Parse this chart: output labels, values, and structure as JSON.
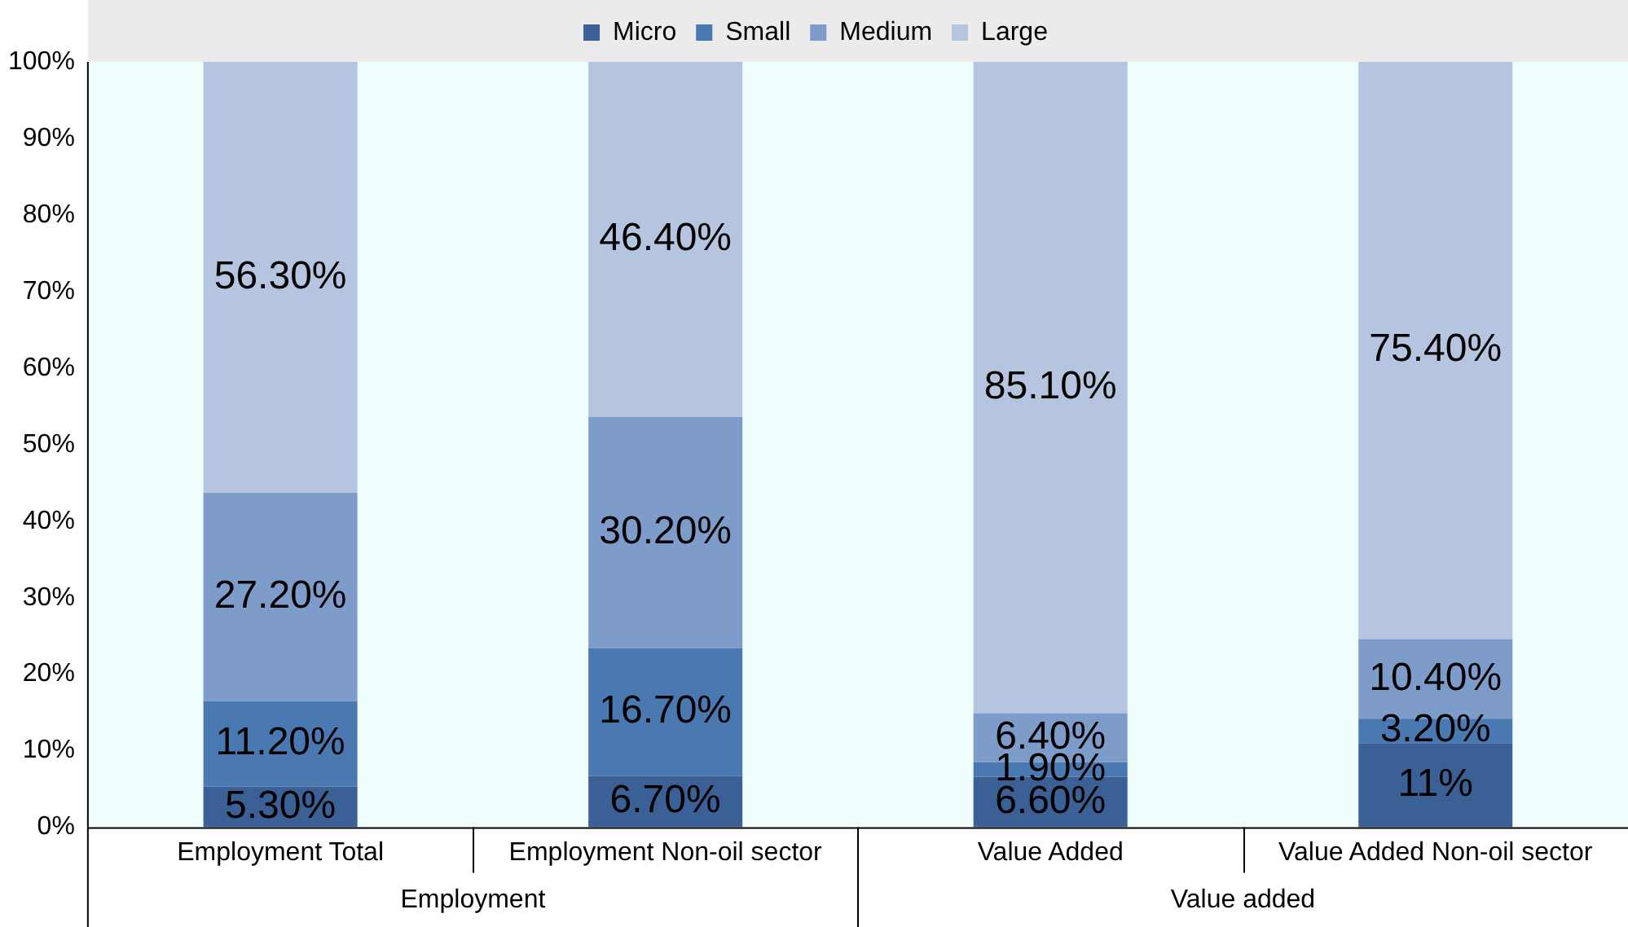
{
  "chart_data": {
    "type": "bar",
    "stacked": true,
    "legend": "top",
    "grid": false,
    "categories": [
      "Employment Total",
      "Employment Non-oil sector",
      "Value Added",
      "Value Added Non-oil sector"
    ],
    "annotations": [
      "Employment",
      "Value added"
    ],
    "ylim": [
      0,
      100
    ],
    "yticks": [
      {
        "value": 0,
        "label": "0%"
      },
      {
        "value": 10,
        "label": "10%"
      },
      {
        "value": 20,
        "label": "20%"
      },
      {
        "value": 30,
        "label": "30%"
      },
      {
        "value": 40,
        "label": "40%"
      },
      {
        "value": 50,
        "label": "50%"
      },
      {
        "value": 60,
        "label": "60%"
      },
      {
        "value": 70,
        "label": "70%"
      },
      {
        "value": 80,
        "label": "80%"
      },
      {
        "value": 90,
        "label": "90%"
      },
      {
        "value": 100,
        "label": "100%"
      }
    ],
    "series": [
      {
        "name": "Micro",
        "color": "#3b6096",
        "values": [
          5.3,
          6.7,
          6.6,
          11
        ],
        "value_labels": [
          "5.30%",
          "6.70%",
          "6.60%",
          "11%"
        ]
      },
      {
        "name": "Small",
        "color": "#4a79b2",
        "values": [
          11.2,
          16.7,
          1.9,
          3.2
        ],
        "value_labels": [
          "11.20%",
          "16.70%",
          "1.90%",
          "3.20%"
        ]
      },
      {
        "name": "Medium",
        "color": "#7d9cca",
        "values": [
          27.2,
          30.2,
          6.4,
          10.4
        ],
        "value_labels": [
          "27.20%",
          "30.20%",
          "6.40%",
          "10.40%"
        ]
      },
      {
        "name": "Large",
        "color": "#b5c4df",
        "values": [
          56.3,
          46.4,
          85.1,
          75.4
        ],
        "value_labels": [
          "56.30%",
          "46.40%",
          "85.10%",
          "75.40%"
        ]
      }
    ]
  }
}
